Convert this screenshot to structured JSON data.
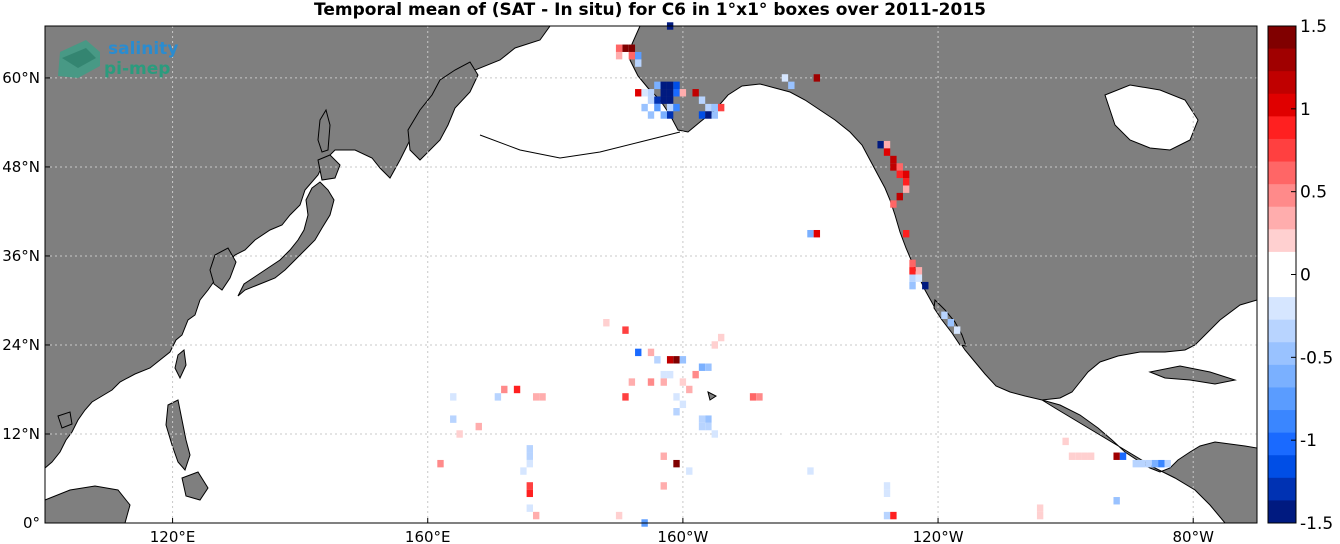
{
  "title": "Temporal mean of (SAT - In situ) for C6 in 1°x1° boxes over 2011-2015",
  "logo": {
    "line1": "salinity",
    "line2": "pi-mep"
  },
  "colors": {
    "land": "#7f7f7f",
    "ocean": "#ffffff",
    "coast": "#000000",
    "grid": "#c8c8c8"
  },
  "map": {
    "projection": "equirectangular",
    "lon_range": [
      "100°E",
      "70°W"
    ],
    "lat_range": [
      0,
      67
    ],
    "x_ticks": [
      {
        "lon": 120,
        "label": "120",
        "hemi": "E"
      },
      {
        "lon": 160,
        "label": "160",
        "hemi": "E"
      },
      {
        "lon": -160,
        "label": "160",
        "hemi": "W"
      },
      {
        "lon": -120,
        "label": "120",
        "hemi": "W"
      },
      {
        "lon": -80,
        "label": "80",
        "hemi": "W"
      }
    ],
    "y_ticks": [
      {
        "lat": 0,
        "label": "0",
        "hemi": ""
      },
      {
        "lat": 12,
        "label": "12",
        "hemi": "N"
      },
      {
        "lat": 24,
        "label": "24",
        "hemi": "N"
      },
      {
        "lat": 36,
        "label": "36",
        "hemi": "N"
      },
      {
        "lat": 48,
        "label": "48",
        "hemi": "N"
      },
      {
        "lat": 60,
        "label": "60",
        "hemi": "N"
      }
    ]
  },
  "colorbar": {
    "min": -1.5,
    "max": 1.5,
    "ticks": [
      "1.5",
      "1",
      "0.5",
      "0",
      "-0.5",
      "-1",
      "-1.5"
    ],
    "colors": [
      "#800000",
      "#a00000",
      "#c00000",
      "#e00000",
      "#ff2020",
      "#ff4040",
      "#ff6666",
      "#ff8a8a",
      "#ffadad",
      "#ffd0d0",
      "#ffffff",
      "#ffffff",
      "#d6e6ff",
      "#b8d4ff",
      "#99c2ff",
      "#7ab0ff",
      "#5a9cff",
      "#3a86ff",
      "#1a6aff",
      "#004ee6",
      "#0032b3",
      "#001a80"
    ]
  },
  "chart_data": {
    "type": "heatmap",
    "title": "Temporal mean of (SAT - In situ) for C6 in 1°x1° boxes over 2011-2015",
    "x": "longitude",
    "y": "latitude",
    "xlim": [
      100,
      290
    ],
    "ylim": [
      0,
      67
    ],
    "value_range": [
      -1.5,
      1.5
    ],
    "cells": [
      [
        191,
        64,
        1.5
      ],
      [
        192,
        64,
        1.5
      ],
      [
        190,
        64,
        0.6
      ],
      [
        192,
        63,
        0.6
      ],
      [
        193,
        63,
        -0.8
      ],
      [
        193,
        62,
        -0.4
      ],
      [
        190,
        63,
        0.4
      ],
      [
        193,
        58,
        1.0
      ],
      [
        194,
        58,
        -0.2
      ],
      [
        195,
        58,
        -0.4
      ],
      [
        195,
        57,
        -0.3
      ],
      [
        194,
        56,
        -0.5
      ],
      [
        196,
        59,
        -0.6
      ],
      [
        197,
        59,
        -1.4
      ],
      [
        198,
        59,
        -1.5
      ],
      [
        199,
        59,
        -1.2
      ],
      [
        197,
        58,
        -1.5
      ],
      [
        198,
        58,
        -1.5
      ],
      [
        199,
        58,
        -1.0
      ],
      [
        196,
        57,
        -1.3
      ],
      [
        197,
        57,
        -1.5
      ],
      [
        198,
        57,
        -1.4
      ],
      [
        196,
        56,
        -0.8
      ],
      [
        198,
        56,
        -0.4
      ],
      [
        199,
        56,
        -0.9
      ],
      [
        195,
        55,
        -0.5
      ],
      [
        197,
        55,
        -0.6
      ],
      [
        198,
        55,
        -1.3
      ],
      [
        200,
        58,
        0.3
      ],
      [
        202,
        58,
        1.1
      ],
      [
        203,
        57,
        -0.4
      ],
      [
        204,
        56,
        -0.3
      ],
      [
        205,
        56,
        -0.5
      ],
      [
        206,
        56,
        0.7
      ],
      [
        203,
        55,
        -1.2
      ],
      [
        204,
        55,
        -1.4
      ],
      [
        205,
        55,
        -0.5
      ],
      [
        216,
        60,
        -0.2
      ],
      [
        217,
        59,
        -0.5
      ],
      [
        221,
        60,
        1.3
      ],
      [
        198,
        67,
        -1.5
      ],
      [
        231,
        51,
        -1.5
      ],
      [
        232,
        51,
        0.4
      ],
      [
        232,
        50,
        1.0
      ],
      [
        233,
        49,
        1.1
      ],
      [
        233,
        48,
        1.2
      ],
      [
        234,
        48,
        0.6
      ],
      [
        234,
        47,
        0.9
      ],
      [
        235,
        47,
        1.0
      ],
      [
        235,
        46,
        0.9
      ],
      [
        235,
        45,
        0.3
      ],
      [
        234,
        44,
        1.2
      ],
      [
        233,
        43,
        0.6
      ],
      [
        235,
        39,
        0.9
      ],
      [
        236,
        35,
        0.6
      ],
      [
        236,
        34,
        0.9
      ],
      [
        237,
        34,
        0.4
      ],
      [
        236,
        33,
        -0.4
      ],
      [
        237,
        33,
        -0.2
      ],
      [
        238,
        32,
        -1.5
      ],
      [
        236,
        32,
        -0.5
      ],
      [
        241,
        28,
        -0.3
      ],
      [
        242,
        27,
        -0.5
      ],
      [
        243,
        26,
        -0.2
      ],
      [
        220,
        39,
        -0.6
      ],
      [
        221,
        39,
        1.0
      ],
      [
        164,
        17,
        -0.2
      ],
      [
        164,
        14,
        -0.4
      ],
      [
        165,
        12,
        0.2
      ],
      [
        168,
        13,
        0.3
      ],
      [
        162,
        8,
        0.5
      ],
      [
        171,
        17,
        -0.3
      ],
      [
        172,
        18,
        0.5
      ],
      [
        174,
        18,
        0.9
      ],
      [
        177,
        17,
        0.3
      ],
      [
        178,
        17,
        0.3
      ],
      [
        176,
        10,
        -0.3
      ],
      [
        176,
        9,
        -0.3
      ],
      [
        176,
        8,
        -0.2
      ],
      [
        175,
        7,
        -0.2
      ],
      [
        176,
        6,
        -0.1
      ],
      [
        176,
        4,
        0.9
      ],
      [
        176,
        5,
        0.8
      ],
      [
        176,
        2,
        -0.2
      ],
      [
        177,
        1,
        0.3
      ],
      [
        188,
        27,
        0.2
      ],
      [
        191,
        26,
        0.7
      ],
      [
        193,
        23,
        -1.0
      ],
      [
        195,
        23,
        0.3
      ],
      [
        196,
        22,
        -0.4
      ],
      [
        198,
        22,
        1.1
      ],
      [
        199,
        22,
        1.5
      ],
      [
        200,
        22,
        -0.5
      ],
      [
        197,
        20,
        -0.2
      ],
      [
        198,
        20,
        -0.2
      ],
      [
        202,
        20,
        0.5
      ],
      [
        203,
        21,
        -0.6
      ],
      [
        204,
        21,
        -0.5
      ],
      [
        205,
        24,
        0.2
      ],
      [
        206,
        25,
        0.2
      ],
      [
        192,
        19,
        0.4
      ],
      [
        195,
        19,
        0.5
      ],
      [
        197,
        19,
        0.3
      ],
      [
        200,
        19,
        0.2
      ],
      [
        201,
        18,
        0.3
      ],
      [
        191,
        17,
        0.8
      ],
      [
        199,
        17,
        -0.2
      ],
      [
        200,
        16,
        -0.2
      ],
      [
        199,
        15,
        -0.3
      ],
      [
        203,
        14,
        -0.4
      ],
      [
        204,
        14,
        -0.5
      ],
      [
        203,
        13,
        -0.3
      ],
      [
        204,
        13,
        -0.3
      ],
      [
        205,
        12,
        -0.2
      ],
      [
        211,
        17,
        0.6
      ],
      [
        212,
        17,
        0.5
      ],
      [
        210,
        13,
        -0.1
      ],
      [
        216,
        12,
        -0.1
      ],
      [
        197,
        9,
        0.3
      ],
      [
        199,
        8,
        1.5
      ],
      [
        197,
        5,
        0.4
      ],
      [
        203,
        6,
        -0.1
      ],
      [
        201,
        7,
        -0.2
      ],
      [
        190,
        5,
        -0.1
      ],
      [
        188,
        1,
        0.1
      ],
      [
        190,
        1,
        0.2
      ],
      [
        194,
        0,
        -0.8
      ],
      [
        212,
        7,
        -0.1
      ],
      [
        213,
        6,
        -0.1
      ],
      [
        219,
        9,
        -0.1
      ],
      [
        220,
        7,
        -0.2
      ],
      [
        220,
        6,
        -0.1
      ],
      [
        232,
        5,
        -0.2
      ],
      [
        232,
        4,
        -0.2
      ],
      [
        232,
        3,
        -0.1
      ],
      [
        232,
        1,
        -0.4
      ],
      [
        233,
        1,
        0.9
      ],
      [
        234,
        10,
        0.1
      ],
      [
        247,
        6,
        0.1
      ],
      [
        248,
        7,
        0.1
      ],
      [
        252,
        6,
        0.1
      ],
      [
        256,
        1,
        0.2
      ],
      [
        256,
        2,
        0.2
      ],
      [
        260,
        11,
        0.2
      ],
      [
        261,
        9,
        0.2
      ],
      [
        262,
        9,
        0.2
      ],
      [
        263,
        9,
        0.2
      ],
      [
        264,
        9,
        0.2
      ],
      [
        268,
        9,
        1.3
      ],
      [
        269,
        9,
        -1.0
      ],
      [
        268,
        3,
        -0.5
      ],
      [
        271,
        8,
        -0.3
      ],
      [
        272,
        8,
        -0.3
      ],
      [
        273,
        8,
        -0.4
      ],
      [
        274,
        8,
        -0.6
      ],
      [
        275,
        8,
        -0.9
      ],
      [
        276,
        8,
        -0.3
      ]
    ]
  }
}
